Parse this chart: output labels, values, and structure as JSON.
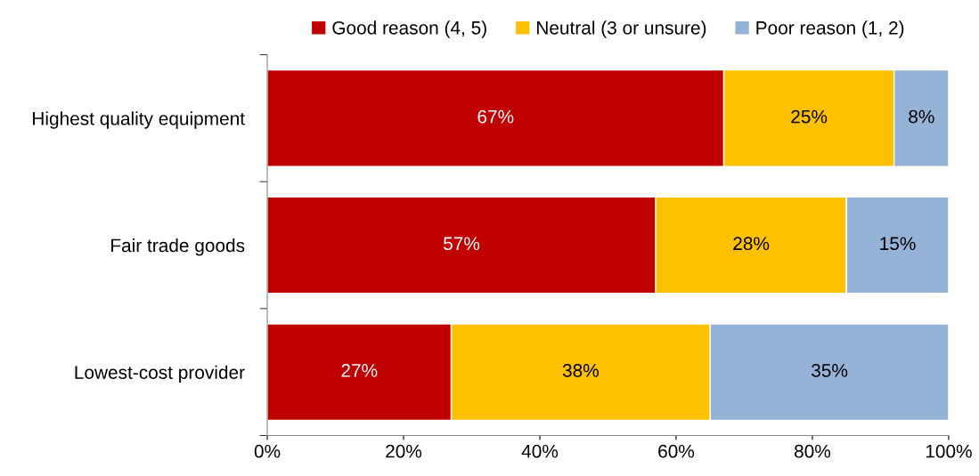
{
  "chart_data": {
    "type": "bar",
    "orientation": "horizontal",
    "stacked": true,
    "categories": [
      "Highest quality equipment",
      "Fair trade goods",
      "Lowest-cost provider"
    ],
    "series": [
      {
        "name": "Good reason (4, 5)",
        "color": "#c00000",
        "values": [
          67,
          57,
          27
        ],
        "value_labels": [
          "67%",
          "57%",
          "27%"
        ]
      },
      {
        "name": "Neutral (3 or unsure)",
        "color": "#ffc000",
        "values": [
          25,
          28,
          38
        ],
        "value_labels": [
          "25%",
          "28%",
          "38%"
        ]
      },
      {
        "name": "Poor reason (1, 2)",
        "color": "#95b3d7",
        "values": [
          8,
          15,
          35
        ],
        "value_labels": [
          "8%",
          "15%",
          "35%"
        ]
      }
    ],
    "xlim": [
      0,
      100
    ],
    "xticks": [
      {
        "value": 0,
        "label": "0%"
      },
      {
        "value": 20,
        "label": "20%"
      },
      {
        "value": 40,
        "label": "40%"
      },
      {
        "value": 60,
        "label": "60%"
      },
      {
        "value": 80,
        "label": "80%"
      },
      {
        "value": 100,
        "label": "100%"
      }
    ],
    "grid": false,
    "legend": "top"
  }
}
